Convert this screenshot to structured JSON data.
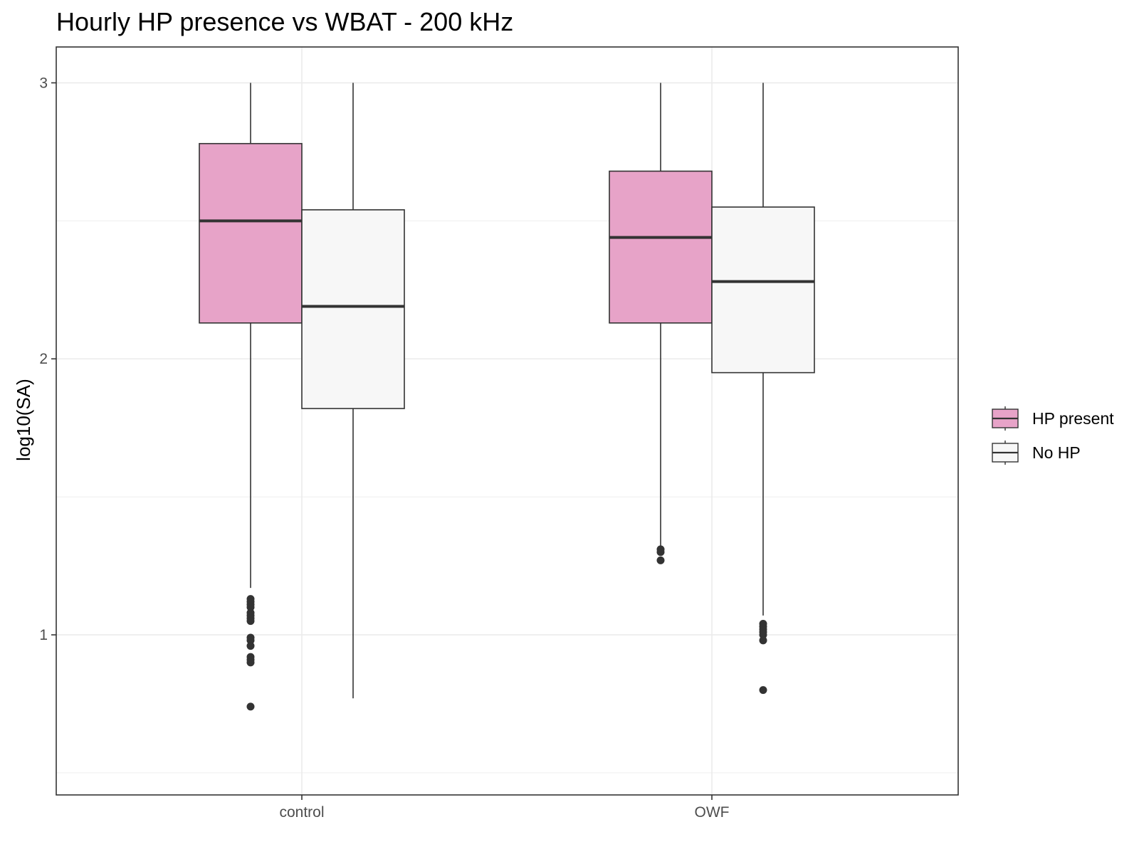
{
  "chart_data": {
    "type": "boxplot",
    "title": "Hourly HP presence vs WBAT - 200 kHz",
    "xlabel": "",
    "ylabel": "log10(SA)",
    "categories": [
      "control",
      "OWF"
    ],
    "ylim": [
      0.42,
      3.13
    ],
    "yticks": [
      1,
      2,
      3
    ],
    "grid": true,
    "legend_position": "right",
    "series": [
      {
        "name": "HP present",
        "color": "#E7A3C8",
        "boxes": [
          {
            "category": "control",
            "q1": 2.13,
            "median": 2.5,
            "q3": 2.78,
            "whisker_low": 1.17,
            "whisker_high": 3.0,
            "outliers": [
              1.13,
              1.12,
              1.11,
              1.1,
              1.08,
              1.07,
              1.06,
              1.05,
              0.99,
              0.98,
              0.96,
              0.92,
              0.91,
              0.9,
              0.74
            ]
          },
          {
            "category": "OWF",
            "q1": 2.13,
            "median": 2.44,
            "q3": 2.68,
            "whisker_low": 1.32,
            "whisker_high": 3.0,
            "outliers": [
              1.31,
              1.3,
              1.27
            ]
          }
        ]
      },
      {
        "name": "No HP",
        "color": "#F7F7F7",
        "boxes": [
          {
            "category": "control",
            "q1": 1.82,
            "median": 2.19,
            "q3": 2.54,
            "whisker_low": 0.77,
            "whisker_high": 3.0,
            "outliers": []
          },
          {
            "category": "OWF",
            "q1": 1.95,
            "median": 2.28,
            "q3": 2.55,
            "whisker_low": 1.07,
            "whisker_high": 3.0,
            "outliers": [
              1.04,
              1.03,
              1.02,
              1.01,
              1.0,
              0.98,
              0.8
            ]
          }
        ]
      }
    ]
  }
}
